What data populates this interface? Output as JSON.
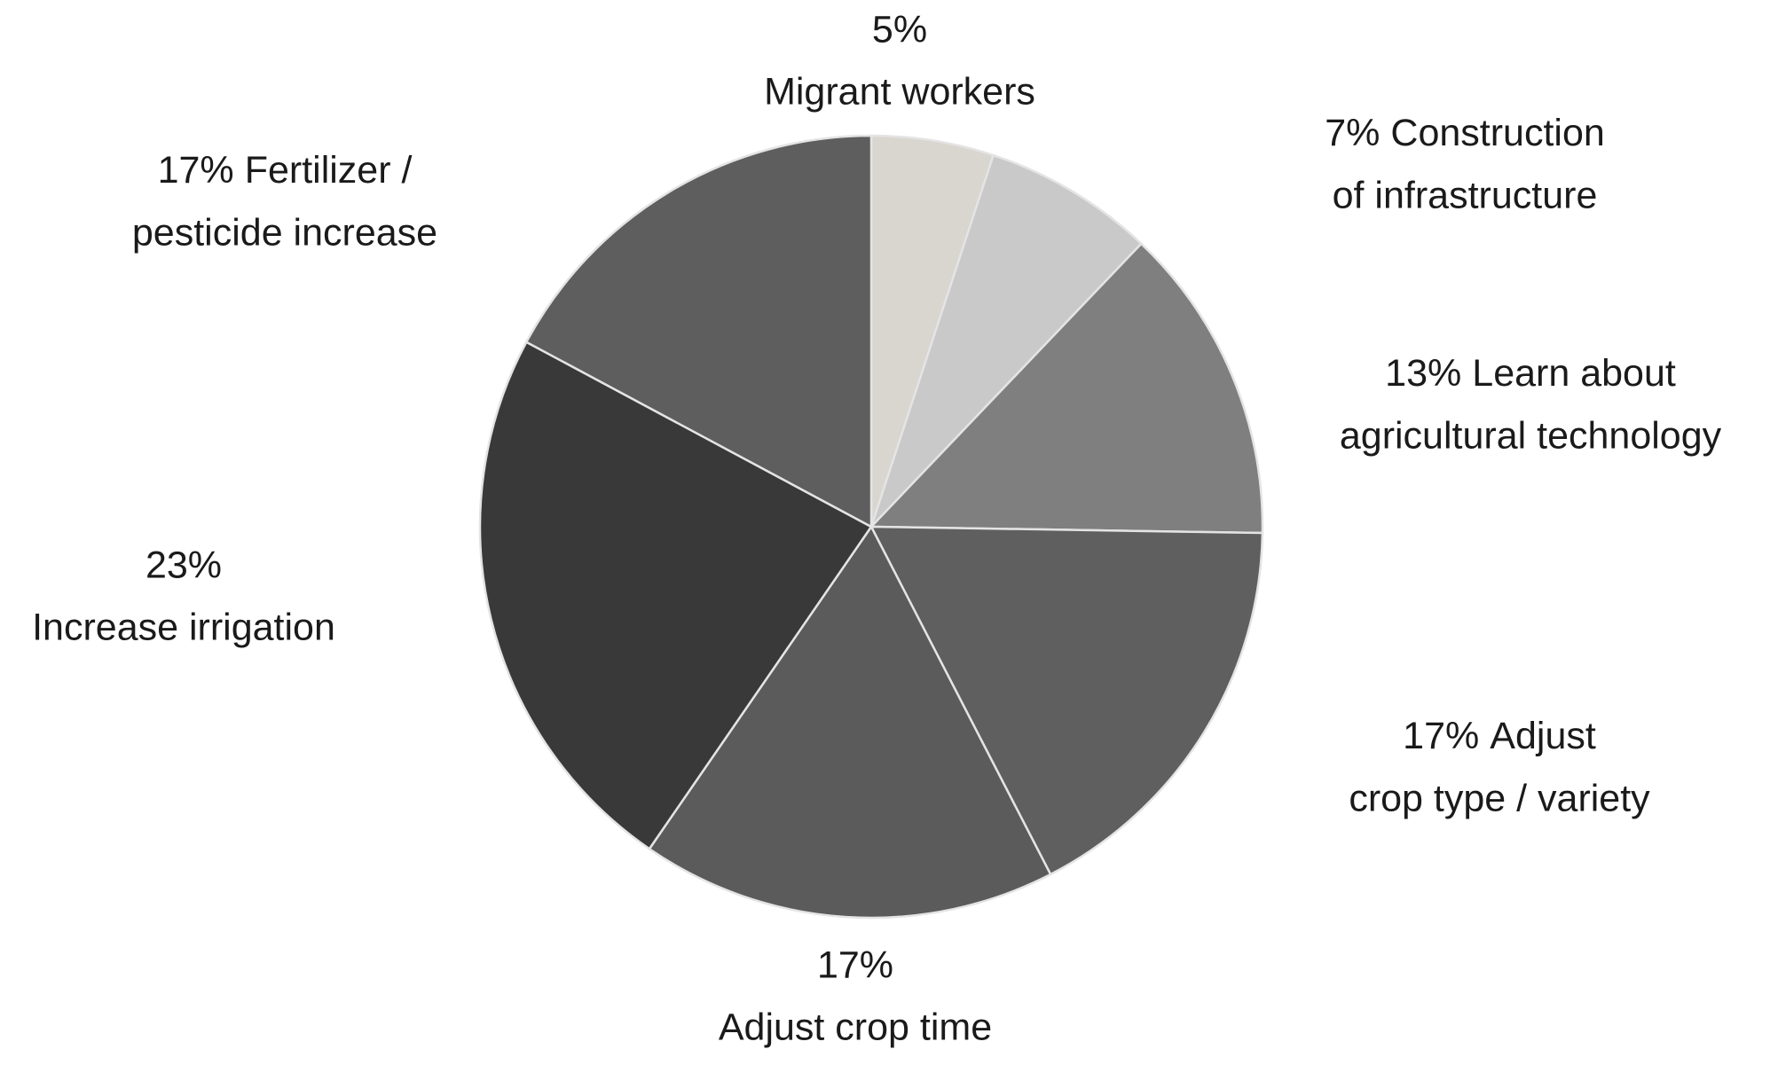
{
  "chart_data": {
    "type": "pie",
    "categories": [
      [
        "Migrant workers"
      ],
      [
        "Construction",
        "of infrastructure"
      ],
      [
        "Learn about",
        "agricultural technology"
      ],
      [
        "Adjust",
        "crop type / variety"
      ],
      [
        "Adjust crop time"
      ],
      [
        "Increase irrigation"
      ],
      [
        "Fertilizer /",
        "pesticide increase"
      ]
    ],
    "values": [
      5,
      7,
      13,
      17,
      17,
      23,
      17
    ],
    "value_labels": [
      "5%",
      "7%",
      "13%",
      "17%",
      "17%",
      "23%",
      "17%"
    ],
    "colors": [
      "#d9d5cf",
      "#c9c9c9",
      "#7f7f7f",
      "#5f5f5f",
      "#5b5b5b",
      "#393939",
      "#5e5e5e"
    ]
  }
}
